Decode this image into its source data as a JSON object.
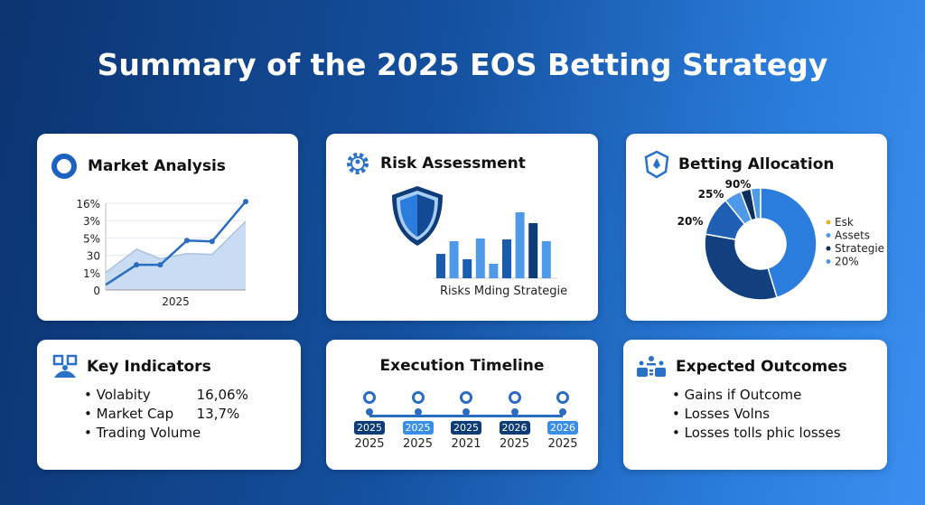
{
  "title": "Summary of the 2025 EOS Betting Strategy",
  "colors": {
    "dark": "#0d3c78",
    "mid": "#1f68c6",
    "light": "#4f9ae8",
    "pale": "#c9dcf4",
    "accent": "#2f7fe0"
  },
  "cards": {
    "market": {
      "title": "Market Analysis",
      "icon": "ring-icon"
    },
    "risk": {
      "title": "Risk Assessment",
      "icon": "gear-icon",
      "caption": "Risks Mding Strategie"
    },
    "alloc": {
      "title": "Betting Allocation",
      "icon": "shield-drop-icon"
    },
    "key": {
      "title": "Key Indicators",
      "icon": "qr-icon",
      "items": [
        {
          "label": "Volabity",
          "value": "16,06%"
        },
        {
          "label": "Market Cap",
          "value": "13,7%"
        },
        {
          "label": "Trading Volume",
          "value": ""
        }
      ]
    },
    "timeline": {
      "title": "Execution Timeline",
      "steps": [
        {
          "badge": "2025",
          "label": "2025",
          "tone": "dark"
        },
        {
          "badge": "2025",
          "label": "2025",
          "tone": "light"
        },
        {
          "badge": "2025",
          "label": "2021",
          "tone": "dark"
        },
        {
          "badge": "2026",
          "label": "2025",
          "tone": "dark"
        },
        {
          "badge": "2026",
          "label": "2025",
          "tone": "light"
        }
      ]
    },
    "outcomes": {
      "title": "Expected Outcomes",
      "icon": "team-icon",
      "items": [
        "Gains if Outcome",
        "Losses Volns",
        "Losses tolls phic losses"
      ]
    }
  },
  "chart_data": [
    {
      "type": "line",
      "yticks": [
        "0",
        "1%",
        "30",
        "5%",
        "3%",
        "16%"
      ],
      "xlabel": "2025",
      "grid": true,
      "x": [
        0,
        2.2,
        3.9,
        5.8,
        7.6,
        10
      ],
      "series": [
        {
          "values": [
            0.3,
            1.45,
            1.45,
            2.85,
            2.8,
            5.1
          ],
          "style": "line-markers"
        },
        {
          "values": [
            1.0,
            2.35,
            1.8,
            2.1,
            2.05,
            3.95
          ],
          "style": "area"
        }
      ]
    },
    {
      "type": "bar",
      "xlabel": "Risks Mding Strategie",
      "values": [
        27,
        41,
        21,
        44,
        16,
        43,
        73,
        61,
        41
      ],
      "tones": [
        "mid",
        "light",
        "mid",
        "light",
        "light",
        "mid",
        "light",
        "dark",
        "light"
      ]
    },
    {
      "type": "pie",
      "donut": true,
      "labels_shown": [
        "20%",
        "25%",
        "90%"
      ],
      "slices": [
        {
          "value": 45.3,
          "tone": "#2a7ddc"
        },
        {
          "value": 32.5,
          "tone": "#123f7e"
        },
        {
          "value": 11.4,
          "tone": "#1f5fb4"
        },
        {
          "value": 5,
          "tone": "#4f9ae8"
        },
        {
          "value": 3,
          "tone": "#0d2f60"
        },
        {
          "value": 2.8,
          "tone": "#4f9ae8"
        }
      ],
      "legend": [
        {
          "label": "Esk",
          "color": "#e8b02a"
        },
        {
          "label": "Assets",
          "color": "#4f9ae8"
        },
        {
          "label": "Strategie",
          "color": "#0d2f60"
        },
        {
          "label": "20%",
          "color": "#4f9ae8"
        }
      ],
      "legend_position": "right"
    }
  ]
}
